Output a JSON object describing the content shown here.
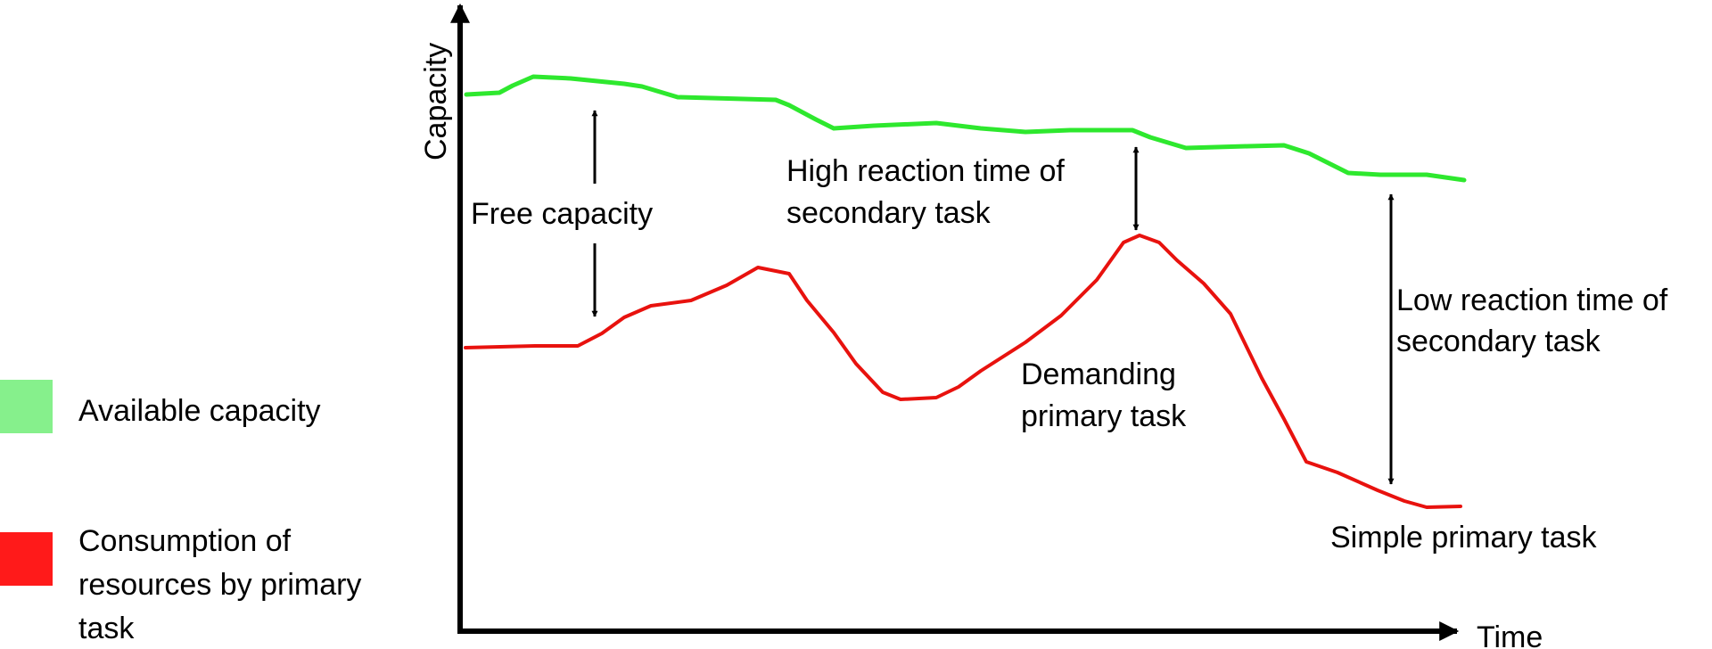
{
  "axes": {
    "y_label": "Capacity",
    "x_label": "Time"
  },
  "legend": [
    {
      "label": "Available capacity",
      "color": "#86f08c"
    },
    {
      "label_lines": [
        "Consumption of",
        "resources by primary",
        "task"
      ],
      "color": "#ff1a1a"
    }
  ],
  "curves": {
    "available_capacity_color": "#2ee82e",
    "consumption_color": "#e8120e"
  },
  "annotations": {
    "free_capacity": "Free capacity",
    "high_reaction": [
      "High reaction time of",
      "secondary task"
    ],
    "low_reaction": [
      "Low reaction time of",
      "secondary task"
    ],
    "demanding": [
      "Demanding",
      "primary task"
    ],
    "simple": "Simple primary task"
  }
}
